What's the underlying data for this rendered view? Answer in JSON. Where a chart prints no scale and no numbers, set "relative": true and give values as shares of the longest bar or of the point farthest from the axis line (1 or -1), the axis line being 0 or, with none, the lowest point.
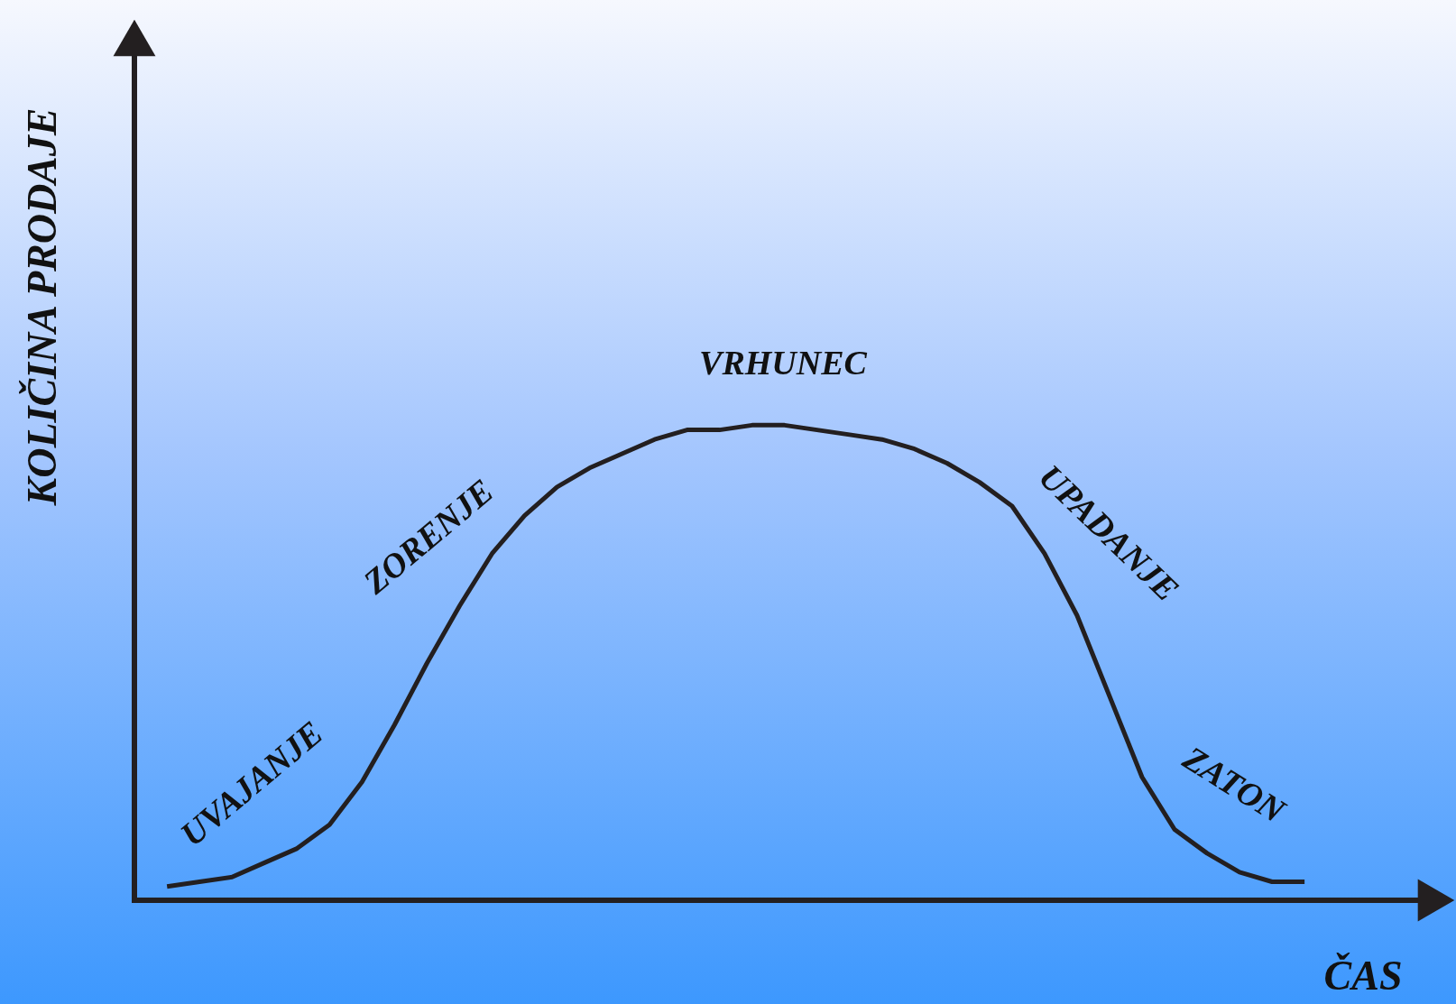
{
  "chart_data": {
    "type": "line",
    "relative": true,
    "xlabel": "ČAS",
    "ylabel": "KOLIČINA PRODAJE",
    "categories": [
      null,
      null,
      null,
      null,
      null,
      null,
      null,
      null,
      null,
      null,
      null,
      null,
      null,
      null,
      null,
      null,
      null,
      null,
      null,
      null,
      null,
      null,
      null,
      null,
      null,
      null,
      null,
      null,
      null,
      null,
      null,
      null,
      null,
      null,
      null,
      null
    ],
    "series": [
      {
        "color": "#231f20",
        "values": [
          0.03,
          0.04,
          0.05,
          0.08,
          0.11,
          0.16,
          0.25,
          0.37,
          0.5,
          0.62,
          0.73,
          0.81,
          0.87,
          0.91,
          0.94,
          0.97,
          0.99,
          0.99,
          1,
          1,
          0.99,
          0.98,
          0.97,
          0.95,
          0.92,
          0.88,
          0.83,
          0.73,
          0.6,
          0.43,
          0.26,
          0.15,
          0.1,
          0.06,
          0.04,
          0.04
        ]
      }
    ],
    "annotations": [
      "UVAJANJE",
      "ZORENJE",
      "VRHUNEC",
      "UPADANJE",
      "ZATON"
    ]
  }
}
